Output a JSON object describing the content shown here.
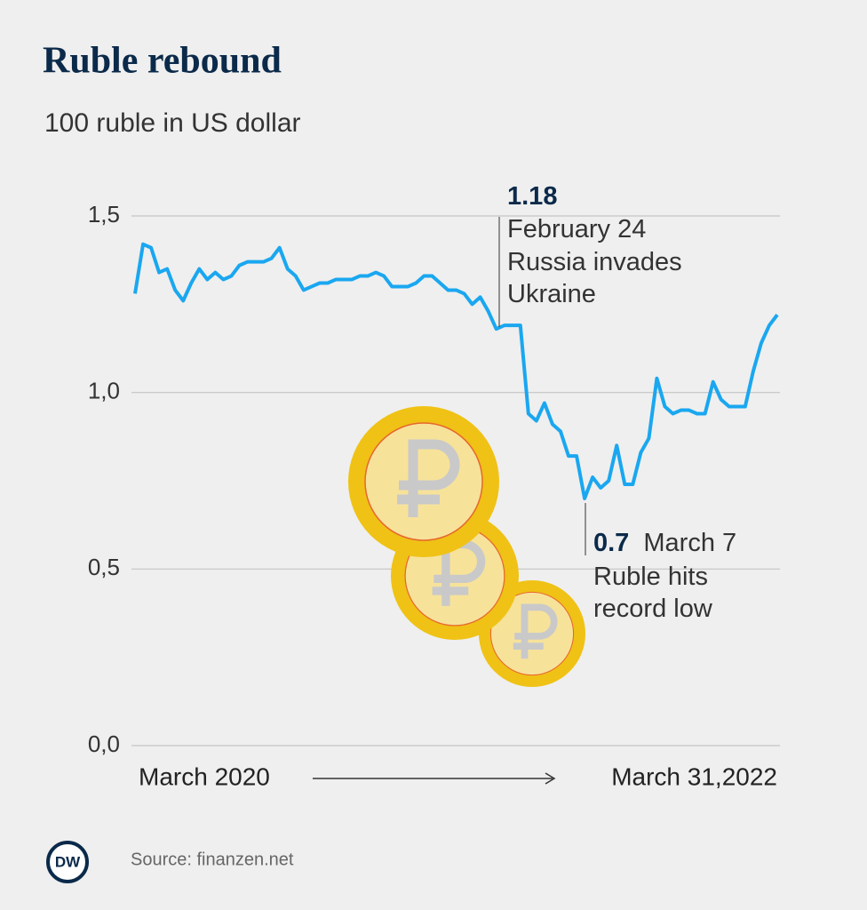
{
  "chart_data": {
    "type": "line",
    "title": "Ruble rebound",
    "subtitle": "100 ruble in US dollar",
    "categories": [
      "March 2020",
      null,
      null,
      null,
      null,
      null,
      null,
      null,
      null,
      null,
      null,
      null,
      null,
      null,
      null,
      null,
      null,
      null,
      null,
      null,
      null,
      null,
      null,
      null,
      null,
      null,
      null,
      null,
      null,
      null,
      null,
      null,
      null,
      null,
      null,
      null,
      null,
      null,
      null,
      null,
      null,
      null,
      null,
      null,
      null,
      null,
      null,
      null,
      null,
      null,
      null,
      null,
      null,
      null,
      null,
      null,
      null,
      null,
      null,
      null,
      null,
      null,
      null,
      null,
      null,
      null,
      null,
      null,
      null,
      null,
      null,
      null,
      null,
      null,
      null,
      null,
      null,
      null,
      null,
      null,
      "March 31,2022"
    ],
    "series": [
      {
        "name": "100 ruble in US dollar",
        "color": "#1aa7f0",
        "values": [
          1.28,
          1.42,
          1.41,
          1.34,
          1.35,
          1.29,
          1.26,
          1.31,
          1.35,
          1.32,
          1.34,
          1.32,
          1.33,
          1.36,
          1.37,
          1.37,
          1.37,
          1.38,
          1.41,
          1.35,
          1.33,
          1.29,
          1.3,
          1.31,
          1.31,
          1.32,
          1.32,
          1.32,
          1.33,
          1.33,
          1.34,
          1.33,
          1.3,
          1.3,
          1.3,
          1.31,
          1.33,
          1.33,
          1.31,
          1.29,
          1.29,
          1.28,
          1.25,
          1.27,
          1.23,
          1.18,
          1.19,
          1.19,
          1.19,
          0.94,
          0.92,
          0.97,
          0.91,
          0.89,
          0.82,
          0.82,
          0.7,
          0.76,
          0.73,
          0.75,
          0.85,
          0.74,
          0.74,
          0.83,
          0.87,
          1.04,
          0.96,
          0.94,
          0.95,
          0.95,
          0.94,
          0.94,
          1.03,
          0.98,
          0.96,
          0.96,
          0.96,
          1.06,
          1.14,
          1.19,
          1.22
        ]
      }
    ],
    "ylim": [
      0,
      1.5
    ],
    "yticks": [
      {
        "value": 0,
        "label": "0,0"
      },
      {
        "value": 0.5,
        "label": "0,5"
      },
      {
        "value": 1,
        "label": "1,0"
      },
      {
        "value": 1.5,
        "label": "1,5"
      }
    ],
    "grid": true,
    "annotations": [
      {
        "value": 1.18,
        "lines": [
          "February 24",
          "Russia invades",
          "Ukraine"
        ]
      },
      {
        "value": 0.7,
        "lines": [
          "March 7",
          "Ruble hits",
          "record low"
        ]
      }
    ],
    "source": "Source: finanzen.net",
    "logo": "DW"
  }
}
